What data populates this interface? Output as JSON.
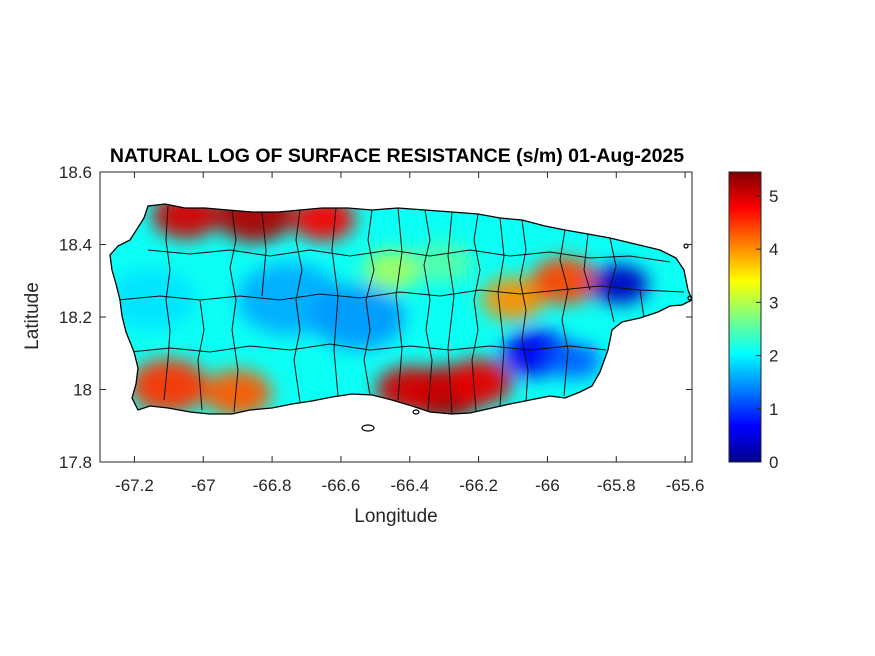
{
  "chart_data": {
    "type": "heatmap",
    "title": "NATURAL LOG OF SURFACE RESISTANCE (s/m) 01-Aug-2025",
    "xlabel": "Longitude",
    "ylabel": "Latitude",
    "xlim": [
      -67.3,
      -65.58
    ],
    "ylim": [
      17.8,
      18.6
    ],
    "xticks": [
      -67.2,
      -67,
      -66.8,
      -66.6,
      -66.4,
      -66.2,
      -66,
      -65.8,
      -65.6
    ],
    "xtick_labels": [
      "-67.2",
      "-67",
      "-66.8",
      "-66.6",
      "-66.4",
      "-66.2",
      "-66",
      "-65.8",
      "-65.6"
    ],
    "yticks": [
      17.8,
      18,
      18.2,
      18.4,
      18.6
    ],
    "ytick_labels": [
      "17.8",
      "18",
      "18.2",
      "18.4",
      "18.6"
    ],
    "colorbar": {
      "colormap": "jet",
      "range": [
        0,
        5.45
      ],
      "ticks": [
        0,
        1,
        2,
        3,
        4,
        5
      ],
      "tick_labels": [
        "0",
        "1",
        "2",
        "3",
        "4",
        "5"
      ]
    },
    "grid": false,
    "region": "Puerto Rico",
    "hotspots": [
      {
        "lon": -67.05,
        "lat": 18.48,
        "value": 5.0
      },
      {
        "lon": -66.85,
        "lat": 18.48,
        "value": 5.2
      },
      {
        "lon": -66.65,
        "lat": 18.47,
        "value": 4.8
      },
      {
        "lon": -66.3,
        "lat": 17.99,
        "value": 5.3
      },
      {
        "lon": -66.4,
        "lat": 18.0,
        "value": 5.0
      },
      {
        "lon": -66.2,
        "lat": 18.02,
        "value": 4.9
      },
      {
        "lon": -67.1,
        "lat": 18.01,
        "value": 4.5
      },
      {
        "lon": -66.9,
        "lat": 17.99,
        "value": 4.3
      },
      {
        "lon": -66.1,
        "lat": 18.25,
        "value": 4.0
      },
      {
        "lon": -65.95,
        "lat": 18.3,
        "value": 4.4
      },
      {
        "lon": -65.79,
        "lat": 18.29,
        "value": 0.3
      },
      {
        "lon": -66.03,
        "lat": 18.1,
        "value": 0.6
      },
      {
        "lon": -65.92,
        "lat": 18.08,
        "value": 1.2
      },
      {
        "lon": -66.75,
        "lat": 18.25,
        "value": 1.6
      },
      {
        "lon": -66.55,
        "lat": 18.2,
        "value": 1.5
      },
      {
        "lon": -66.45,
        "lat": 18.33,
        "value": 2.9
      },
      {
        "lon": -66.3,
        "lat": 18.35,
        "value": 2.5
      },
      {
        "lon": -67.15,
        "lat": 18.25,
        "value": 1.9
      }
    ]
  }
}
